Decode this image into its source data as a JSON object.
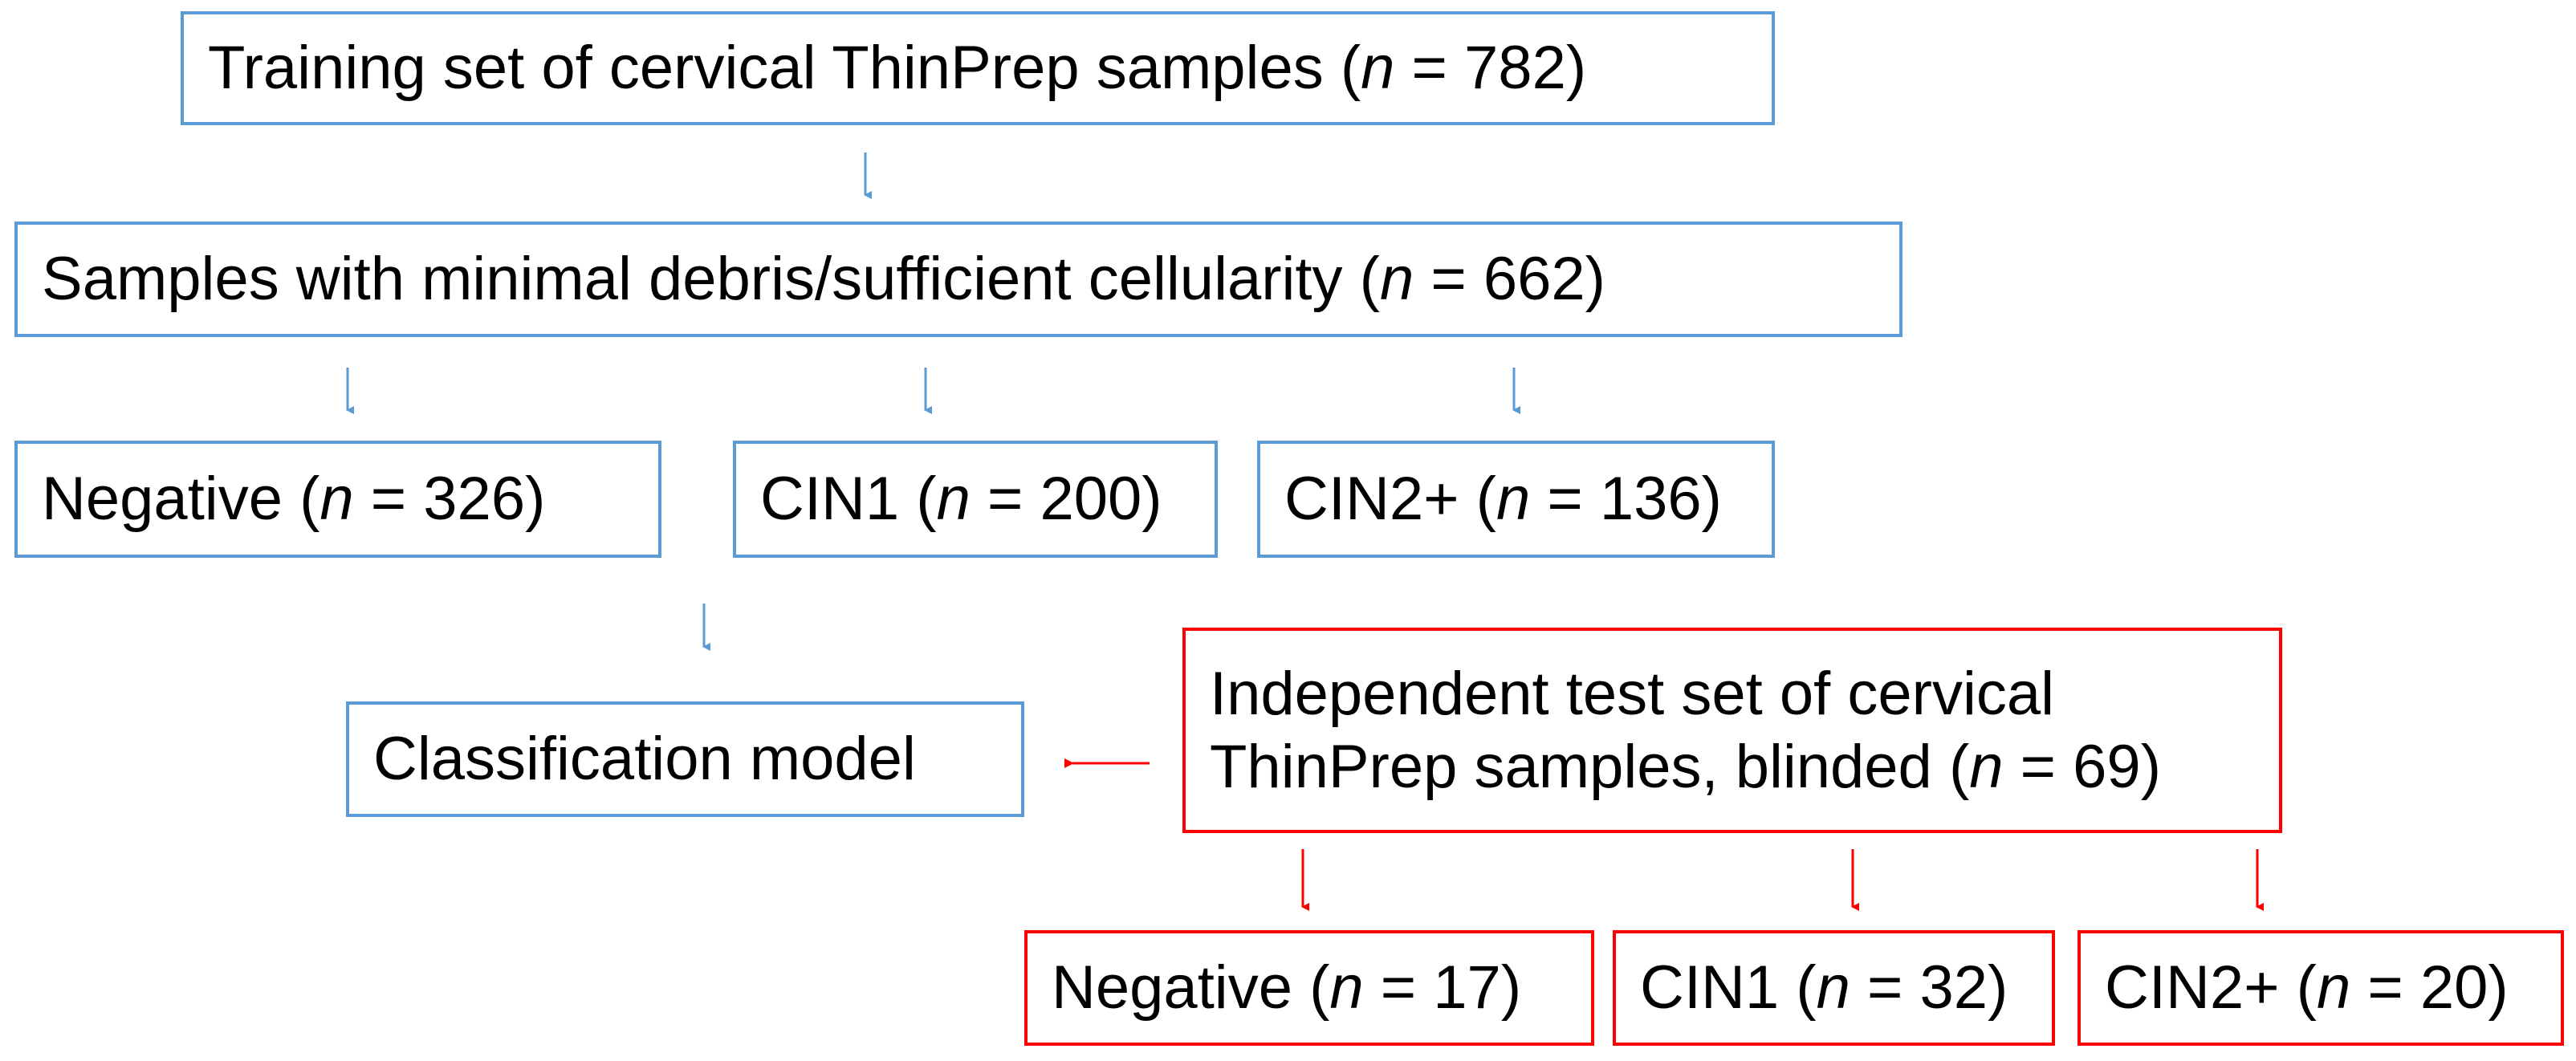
{
  "colors": {
    "blue": "#5b9bd5",
    "red": "#ff0000"
  },
  "nodes": {
    "training": {
      "pre": "Training set of cervical ThinPrep samples  (",
      "n_symbol": "n",
      "post": " = 782)"
    },
    "filtered": {
      "pre": "Samples with minimal debris/sufficient cellularity (",
      "n_symbol": "n",
      "post": " = 662)"
    },
    "train_negative": {
      "pre": "Negative (",
      "n_symbol": "n",
      "post": " = 326)"
    },
    "train_cin1": {
      "pre": "CIN1 (",
      "n_symbol": "n",
      "post": " = 200)"
    },
    "train_cin2": {
      "pre": "CIN2+ (",
      "n_symbol": "n",
      "post": " = 136)"
    },
    "model": {
      "label": "Classification model"
    },
    "test_set": {
      "line1": "Independent test set of cervical",
      "line2_pre": "ThinPrep samples, blinded (",
      "n_symbol": "n",
      "line2_post": " = 69)"
    },
    "test_negative": {
      "pre": "Negative (",
      "n_symbol": "n",
      "post": " = 17)"
    },
    "test_cin1": {
      "pre": "CIN1 (",
      "n_symbol": "n",
      "post": " = 32)"
    },
    "test_cin2": {
      "pre": "CIN2+ (",
      "n_symbol": "n",
      "post": " = 20)"
    }
  }
}
